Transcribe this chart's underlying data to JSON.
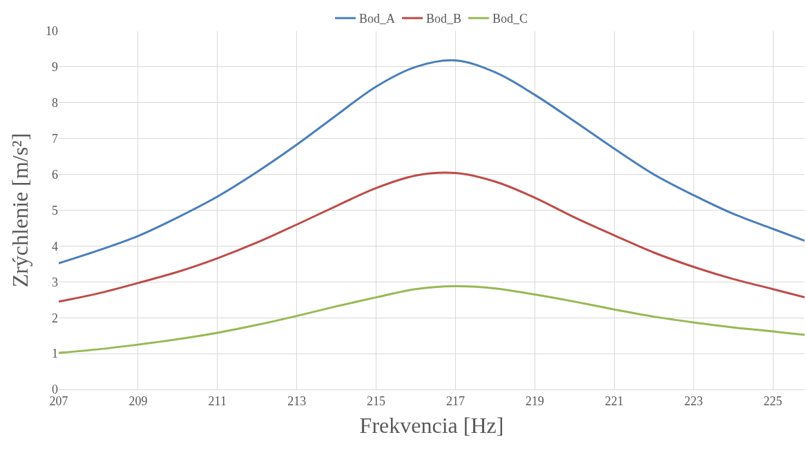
{
  "chart_data": {
    "type": "line",
    "xlabel": "Frekvencia [Hz]",
    "ylabel": "Zrýchlenie [m/s²]",
    "x": [
      207,
      208,
      209,
      210,
      211,
      212,
      213,
      214,
      215,
      216,
      217,
      218,
      219,
      220,
      221,
      222,
      223,
      224,
      225,
      225.8
    ],
    "series": [
      {
        "name": "Bod_A",
        "color": "#4a7ebb",
        "values": [
          3.52,
          3.88,
          4.28,
          4.8,
          5.38,
          6.07,
          6.83,
          7.65,
          8.45,
          9.0,
          9.18,
          8.85,
          8.22,
          7.48,
          6.72,
          6.0,
          5.42,
          4.9,
          4.48,
          4.15
        ]
      },
      {
        "name": "Bod_B",
        "color": "#be4b48",
        "values": [
          2.45,
          2.68,
          2.97,
          3.28,
          3.66,
          4.1,
          4.6,
          5.12,
          5.62,
          5.97,
          6.04,
          5.8,
          5.35,
          4.8,
          4.3,
          3.82,
          3.42,
          3.08,
          2.8,
          2.57
        ]
      },
      {
        "name": "Bod_C",
        "color": "#98b954",
        "values": [
          1.02,
          1.12,
          1.25,
          1.4,
          1.58,
          1.8,
          2.05,
          2.32,
          2.57,
          2.8,
          2.88,
          2.82,
          2.65,
          2.45,
          2.23,
          2.03,
          1.87,
          1.73,
          1.62,
          1.52
        ]
      }
    ],
    "xlim": [
      207,
      225.8
    ],
    "xticks": [
      207,
      209,
      211,
      213,
      215,
      217,
      219,
      221,
      223,
      225
    ],
    "ylim": [
      0,
      10
    ],
    "yticks": [
      0,
      1,
      2,
      3,
      4,
      5,
      6,
      7,
      8,
      9,
      10
    ],
    "grid": true,
    "legend": "top",
    "marker": "none",
    "line_style": "solid"
  }
}
